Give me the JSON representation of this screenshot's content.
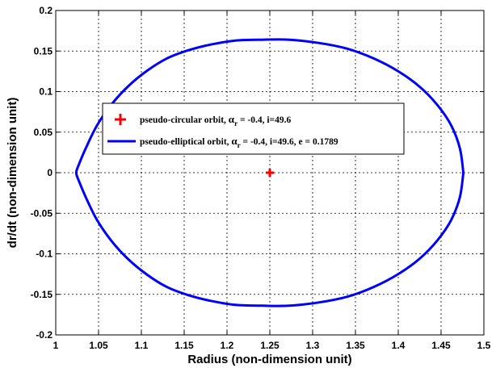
{
  "chart_data": {
    "type": "line",
    "title": "",
    "xlabel": "Radius (non-dimension unit)",
    "ylabel": "dr/dt (non-dimension unit)",
    "xlim": [
      1,
      1.5
    ],
    "ylim": [
      -0.2,
      0.2
    ],
    "xticks": [
      "1",
      "1.05",
      "1.1",
      "1.15",
      "1.2",
      "1.25",
      "1.3",
      "1.35",
      "1.4",
      "1.45",
      "1.5"
    ],
    "yticks": [
      "-0.2",
      "-0.15",
      "-0.1",
      "-0.05",
      "0",
      "0.05",
      "0.1",
      "0.15",
      "0.2"
    ],
    "grid": true,
    "legend_position": "upper-left",
    "series": [
      {
        "name": "pseudo-circular orbit, α_r = -0.4, i=49.6",
        "legend_parts": [
          "pseudo-circular orbit, ",
          "α",
          "r",
          " = -0.4, i=49.6"
        ],
        "marker": "plus",
        "color": "#ff0000",
        "x": [
          1.25
        ],
        "y": [
          0
        ]
      },
      {
        "name": "pseudo-elliptical orbit, α_r = -0.4, i=49.6, e = 0.1789",
        "legend_parts": [
          "pseudo-elliptical orbit, ",
          "α",
          "r",
          " = -0.4, i=49.6, e = 0.1789"
        ],
        "marker": "none",
        "color": "#0000ff",
        "x": [
          1.476,
          1.472,
          1.462,
          1.446,
          1.425,
          1.4,
          1.371,
          1.34,
          1.307,
          1.273,
          1.241,
          1.21,
          1.181,
          1.155,
          1.13,
          1.107,
          1.085,
          1.065,
          1.048,
          1.035,
          1.027,
          1.024,
          1.027,
          1.035,
          1.048,
          1.065,
          1.085,
          1.107,
          1.13,
          1.155,
          1.181,
          1.21,
          1.241,
          1.273,
          1.307,
          1.34,
          1.371,
          1.4,
          1.425,
          1.446,
          1.462,
          1.472,
          1.476
        ],
        "y": [
          0.0,
          0.03,
          0.058,
          0.083,
          0.106,
          0.125,
          0.141,
          0.153,
          0.16,
          0.164,
          0.164,
          0.163,
          0.158,
          0.151,
          0.141,
          0.126,
          0.107,
          0.084,
          0.058,
          0.03,
          0.01,
          0.0,
          -0.01,
          -0.03,
          -0.058,
          -0.084,
          -0.107,
          -0.126,
          -0.141,
          -0.151,
          -0.158,
          -0.163,
          -0.164,
          -0.164,
          -0.16,
          -0.153,
          -0.141,
          -0.125,
          -0.106,
          -0.083,
          -0.058,
          -0.03,
          0.0
        ]
      }
    ]
  }
}
